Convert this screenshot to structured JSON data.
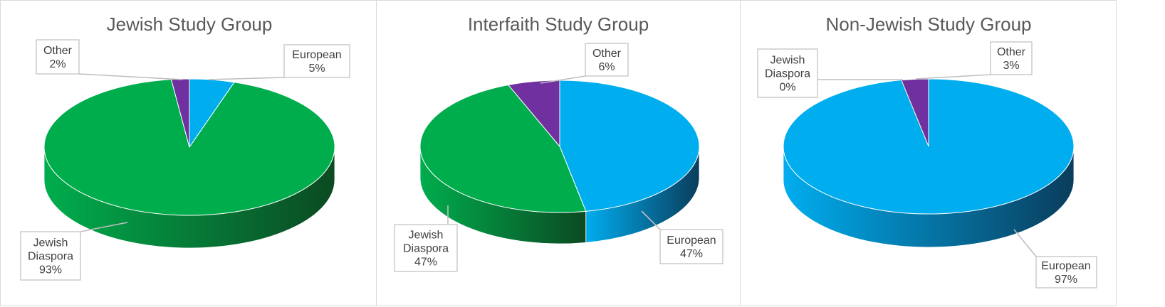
{
  "colors": {
    "european": "#00adef",
    "european_dark": "#0a3d5c",
    "jewish_diaspora": "#00ad4d",
    "jewish_diaspora_dark": "#0b4a22",
    "other": "#7030a0",
    "other_dark": "#3d1a57"
  },
  "chart_data": [
    {
      "type": "pie",
      "title": "Jewish Study Group",
      "slices": [
        {
          "name": "European",
          "value": 5,
          "label_lines": [
            "European",
            "5%"
          ]
        },
        {
          "name": "Jewish Diaspora",
          "value": 93,
          "label_lines": [
            "Jewish",
            "Diaspora",
            "93%"
          ]
        },
        {
          "name": "Other",
          "value": 2,
          "label_lines": [
            "Other",
            "2%"
          ]
        }
      ]
    },
    {
      "type": "pie",
      "title": "Interfaith Study Group",
      "slices": [
        {
          "name": "European",
          "value": 47,
          "label_lines": [
            "European",
            "47%"
          ]
        },
        {
          "name": "Jewish Diaspora",
          "value": 47,
          "label_lines": [
            "Jewish",
            "Diaspora",
            "47%"
          ]
        },
        {
          "name": "Other",
          "value": 6,
          "label_lines": [
            "Other",
            "6%"
          ]
        }
      ]
    },
    {
      "type": "pie",
      "title": "Non-Jewish Study Group",
      "slices": [
        {
          "name": "European",
          "value": 97,
          "label_lines": [
            "European",
            "97%"
          ]
        },
        {
          "name": "Jewish Diaspora",
          "value": 0,
          "label_lines": [
            "Jewish",
            "Diaspora",
            "0%"
          ]
        },
        {
          "name": "Other",
          "value": 3,
          "label_lines": [
            "Other",
            "3%"
          ]
        }
      ]
    }
  ]
}
